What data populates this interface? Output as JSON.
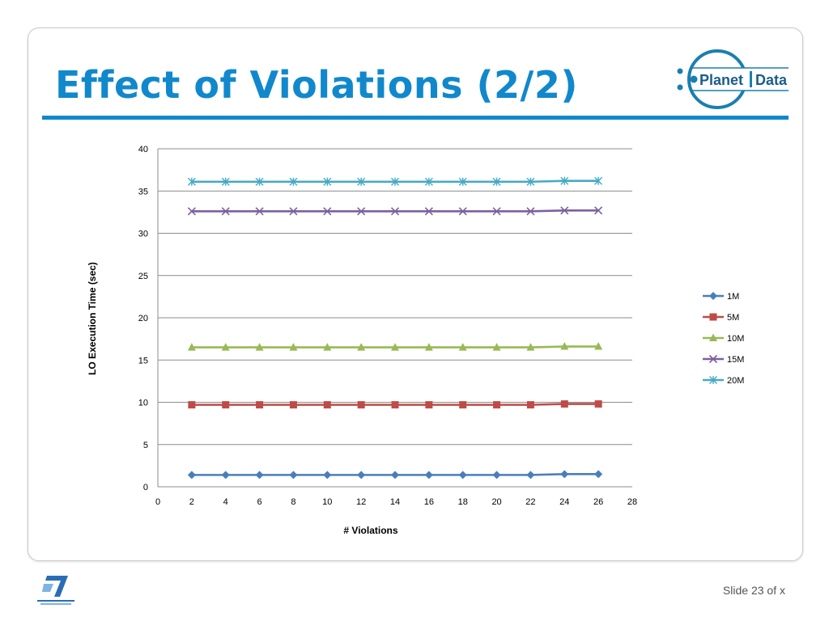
{
  "slide": {
    "title": "Effect of Violations (2/2)",
    "footer": {
      "prefix": "Slide",
      "number": "23",
      "of": "of",
      "total": "x"
    },
    "logo_text": {
      "left": "Planet",
      "right": "Data"
    },
    "colors": {
      "title": "#1188cc",
      "rule": "#1188cc"
    }
  },
  "chart_data": {
    "type": "line",
    "xlabel": "# Violations",
    "ylabel": "LO Execution Time (sec)",
    "xlim": [
      0,
      28
    ],
    "ylim": [
      0,
      40
    ],
    "xticks": [
      "0",
      "2",
      "4",
      "6",
      "8",
      "10",
      "12",
      "14",
      "16",
      "18",
      "20",
      "22",
      "24",
      "26",
      "28"
    ],
    "yticks": [
      "0",
      "5",
      "10",
      "15",
      "20",
      "25",
      "30",
      "35",
      "40"
    ],
    "grid": "horizontal",
    "legend": "right",
    "x": [
      2,
      4,
      6,
      8,
      10,
      12,
      14,
      16,
      18,
      20,
      22,
      24,
      26
    ],
    "series": [
      {
        "name": "1M",
        "color": "#4a7ebb",
        "marker": "diamond",
        "values": [
          1.4,
          1.4,
          1.4,
          1.4,
          1.4,
          1.4,
          1.4,
          1.4,
          1.4,
          1.4,
          1.4,
          1.5,
          1.5
        ]
      },
      {
        "name": "5M",
        "color": "#be4b48",
        "marker": "square",
        "values": [
          9.7,
          9.7,
          9.7,
          9.7,
          9.7,
          9.7,
          9.7,
          9.7,
          9.7,
          9.7,
          9.7,
          9.8,
          9.8
        ]
      },
      {
        "name": "10M",
        "color": "#98b954",
        "marker": "triangle",
        "values": [
          16.5,
          16.5,
          16.5,
          16.5,
          16.5,
          16.5,
          16.5,
          16.5,
          16.5,
          16.5,
          16.5,
          16.6,
          16.6
        ]
      },
      {
        "name": "15M",
        "color": "#7d60a0",
        "marker": "x",
        "values": [
          32.6,
          32.6,
          32.6,
          32.6,
          32.6,
          32.6,
          32.6,
          32.6,
          32.6,
          32.6,
          32.6,
          32.7,
          32.7
        ]
      },
      {
        "name": "20M",
        "color": "#46aac4",
        "marker": "star",
        "values": [
          36.1,
          36.1,
          36.1,
          36.1,
          36.1,
          36.1,
          36.1,
          36.1,
          36.1,
          36.1,
          36.1,
          36.2,
          36.2
        ]
      }
    ]
  }
}
